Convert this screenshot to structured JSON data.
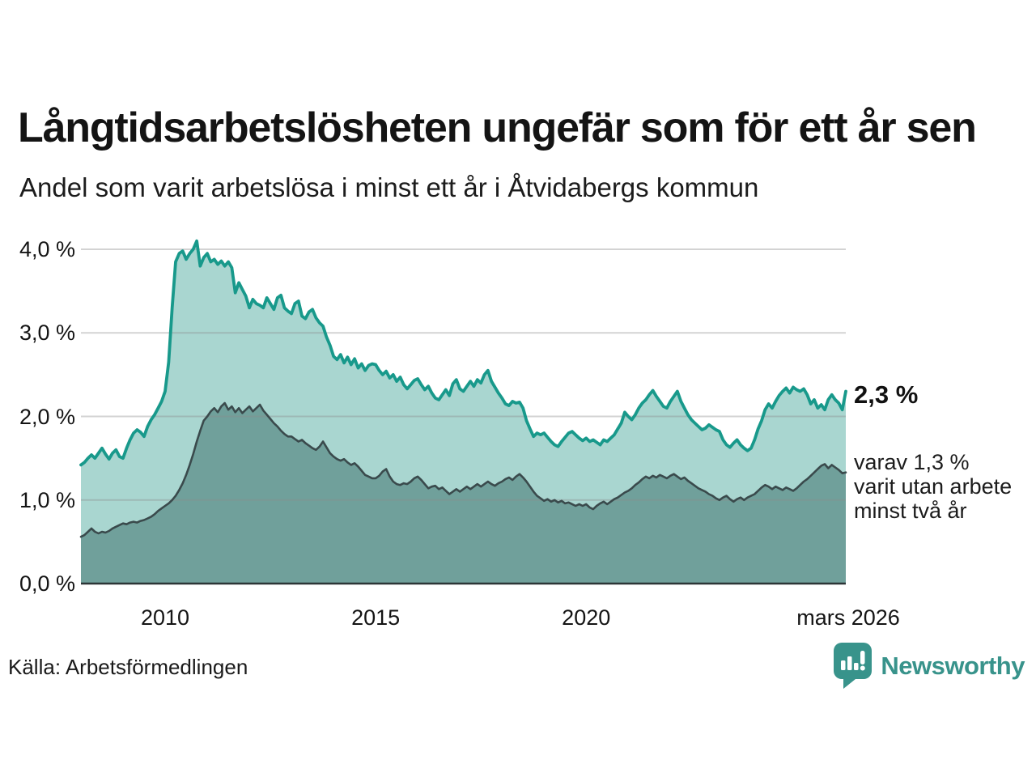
{
  "header": {
    "title": "Långtidsarbetslösheten ungefär som för ett år sen",
    "subtitle": "Andel som varit arbetslösa i minst ett år i Åtvidabergs kommun"
  },
  "annotations": {
    "latest_total": "2,3 %",
    "subset_lines": [
      "varav 1,3 %",
      "varit utan arbete",
      "minst två år"
    ]
  },
  "source": "Källa: Arbetsförmedlingen",
  "brand": {
    "name": "Newsworthy",
    "color": "#38938b",
    "icon": "bar-chart-speech-bubble"
  },
  "colors": {
    "line_total": "#18998b",
    "fill_total": "#a9d6d0",
    "line_two_years": "#3a4a4c",
    "fill_two_years": "#70a09b",
    "gridline": "rgba(140,140,140,0.38)",
    "baseline": "#2c3537"
  },
  "chart_data": {
    "type": "area",
    "title": "Långtidsarbetslösheten ungefär som för ett år sen",
    "subtitle": "Andel som varit arbetslösa i minst ett år i Åtvidabergs kommun",
    "unit": "%",
    "start_month": "2008-01",
    "end_month": "2026-03",
    "frequency": "monthly",
    "ylim": [
      0,
      4.3
    ],
    "grid": true,
    "y_ticks": [
      {
        "label": "0,0 %",
        "value": 0
      },
      {
        "label": "1,0 %",
        "value": 1
      },
      {
        "label": "2,0 %",
        "value": 2
      },
      {
        "label": "3,0 %",
        "value": 3
      },
      {
        "label": "4,0 %",
        "value": 4
      }
    ],
    "x_ticks": [
      {
        "label": "2010",
        "month_index": 24
      },
      {
        "label": "2015",
        "month_index": 84
      },
      {
        "label": "2020",
        "month_index": 144
      },
      {
        "label": "mars 2026",
        "month_index": 218
      }
    ],
    "series": [
      {
        "name": "Arbetslösa minst ett år",
        "color": "#18998b",
        "fill": "#a9d6d0",
        "latest_label": "2,3 %",
        "values": [
          1.42,
          1.45,
          1.5,
          1.54,
          1.5,
          1.56,
          1.62,
          1.55,
          1.49,
          1.56,
          1.6,
          1.52,
          1.5,
          1.62,
          1.72,
          1.8,
          1.84,
          1.81,
          1.76,
          1.88,
          1.96,
          2.02,
          2.1,
          2.18,
          2.3,
          2.65,
          3.3,
          3.85,
          3.95,
          3.98,
          3.88,
          3.95,
          4.0,
          4.1,
          3.8,
          3.9,
          3.95,
          3.85,
          3.88,
          3.82,
          3.86,
          3.8,
          3.85,
          3.78,
          3.48,
          3.6,
          3.52,
          3.44,
          3.3,
          3.4,
          3.35,
          3.33,
          3.3,
          3.42,
          3.35,
          3.28,
          3.42,
          3.45,
          3.3,
          3.26,
          3.23,
          3.35,
          3.38,
          3.2,
          3.17,
          3.25,
          3.28,
          3.18,
          3.12,
          3.08,
          2.95,
          2.85,
          2.72,
          2.68,
          2.74,
          2.64,
          2.71,
          2.62,
          2.69,
          2.58,
          2.63,
          2.55,
          2.61,
          2.63,
          2.62,
          2.55,
          2.5,
          2.54,
          2.46,
          2.5,
          2.42,
          2.47,
          2.38,
          2.33,
          2.38,
          2.43,
          2.45,
          2.38,
          2.32,
          2.36,
          2.28,
          2.22,
          2.2,
          2.26,
          2.32,
          2.25,
          2.39,
          2.44,
          2.33,
          2.3,
          2.36,
          2.42,
          2.36,
          2.44,
          2.4,
          2.5,
          2.55,
          2.42,
          2.35,
          2.28,
          2.22,
          2.15,
          2.13,
          2.18,
          2.16,
          2.17,
          2.1,
          1.95,
          1.85,
          1.76,
          1.8,
          1.78,
          1.8,
          1.75,
          1.7,
          1.66,
          1.64,
          1.7,
          1.75,
          1.8,
          1.82,
          1.78,
          1.74,
          1.71,
          1.74,
          1.7,
          1.72,
          1.69,
          1.66,
          1.72,
          1.7,
          1.74,
          1.78,
          1.85,
          1.92,
          2.05,
          2.0,
          1.96,
          2.02,
          2.1,
          2.16,
          2.2,
          2.26,
          2.31,
          2.24,
          2.18,
          2.12,
          2.1,
          2.18,
          2.24,
          2.3,
          2.18,
          2.1,
          2.02,
          1.96,
          1.92,
          1.88,
          1.84,
          1.86,
          1.9,
          1.87,
          1.84,
          1.82,
          1.72,
          1.66,
          1.63,
          1.68,
          1.72,
          1.66,
          1.62,
          1.59,
          1.62,
          1.72,
          1.85,
          1.95,
          2.08,
          2.15,
          2.1,
          2.18,
          2.25,
          2.3,
          2.34,
          2.28,
          2.35,
          2.32,
          2.3,
          2.33,
          2.26,
          2.15,
          2.2,
          2.1,
          2.14,
          2.08,
          2.2,
          2.26,
          2.2,
          2.16,
          2.08,
          2.3
        ]
      },
      {
        "name": "Arbetslösa minst två år",
        "color": "#3a4a4c",
        "fill": "#70a09b",
        "latest_label": "1,3 %",
        "values": [
          0.56,
          0.58,
          0.62,
          0.66,
          0.62,
          0.6,
          0.62,
          0.61,
          0.63,
          0.66,
          0.68,
          0.7,
          0.72,
          0.71,
          0.73,
          0.74,
          0.73,
          0.75,
          0.76,
          0.78,
          0.8,
          0.83,
          0.87,
          0.9,
          0.93,
          0.96,
          1.0,
          1.05,
          1.12,
          1.2,
          1.3,
          1.42,
          1.55,
          1.7,
          1.83,
          1.95,
          2.0,
          2.06,
          2.1,
          2.05,
          2.12,
          2.16,
          2.08,
          2.12,
          2.05,
          2.1,
          2.04,
          2.08,
          2.12,
          2.06,
          2.1,
          2.14,
          2.07,
          2.02,
          1.97,
          1.92,
          1.88,
          1.83,
          1.79,
          1.76,
          1.76,
          1.73,
          1.7,
          1.72,
          1.68,
          1.65,
          1.62,
          1.6,
          1.64,
          1.7,
          1.63,
          1.56,
          1.52,
          1.49,
          1.47,
          1.49,
          1.45,
          1.42,
          1.44,
          1.4,
          1.35,
          1.3,
          1.28,
          1.26,
          1.26,
          1.29,
          1.34,
          1.37,
          1.28,
          1.22,
          1.19,
          1.18,
          1.2,
          1.19,
          1.22,
          1.26,
          1.28,
          1.24,
          1.19,
          1.14,
          1.16,
          1.17,
          1.13,
          1.15,
          1.11,
          1.07,
          1.1,
          1.13,
          1.1,
          1.13,
          1.16,
          1.13,
          1.16,
          1.19,
          1.16,
          1.19,
          1.22,
          1.19,
          1.17,
          1.2,
          1.22,
          1.25,
          1.27,
          1.24,
          1.28,
          1.31,
          1.27,
          1.22,
          1.16,
          1.1,
          1.05,
          1.02,
          0.99,
          1.01,
          0.98,
          1.0,
          0.97,
          0.99,
          0.96,
          0.97,
          0.95,
          0.93,
          0.95,
          0.93,
          0.95,
          0.91,
          0.89,
          0.93,
          0.96,
          0.98,
          0.95,
          0.98,
          1.01,
          1.03,
          1.06,
          1.09,
          1.11,
          1.14,
          1.18,
          1.21,
          1.25,
          1.28,
          1.26,
          1.29,
          1.27,
          1.3,
          1.28,
          1.26,
          1.29,
          1.31,
          1.28,
          1.25,
          1.27,
          1.23,
          1.2,
          1.17,
          1.14,
          1.12,
          1.1,
          1.07,
          1.05,
          1.02,
          1.0,
          1.03,
          1.05,
          1.01,
          0.98,
          1.01,
          1.03,
          1.0,
          1.03,
          1.05,
          1.07,
          1.11,
          1.15,
          1.18,
          1.16,
          1.13,
          1.16,
          1.14,
          1.12,
          1.15,
          1.13,
          1.11,
          1.14,
          1.18,
          1.22,
          1.25,
          1.29,
          1.33,
          1.37,
          1.41,
          1.43,
          1.38,
          1.42,
          1.39,
          1.36,
          1.32,
          1.33
        ]
      }
    ]
  }
}
